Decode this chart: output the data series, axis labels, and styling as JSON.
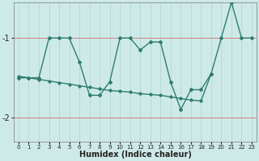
{
  "xlabel": "Humidex (Indice chaleur)",
  "x_values": [
    0,
    1,
    2,
    3,
    4,
    5,
    6,
    7,
    8,
    9,
    10,
    11,
    12,
    13,
    14,
    15,
    16,
    17,
    18,
    19,
    20,
    21,
    22,
    23
  ],
  "line1_y": [
    -1.5,
    -1.5,
    -1.5,
    -1.0,
    -1.0,
    -1.0,
    -1.3,
    -1.72,
    -1.72,
    -1.55,
    -1.0,
    -1.0,
    -1.15,
    -1.05,
    -1.05,
    -1.55,
    -1.9,
    -1.65,
    -1.65,
    -1.45,
    -1.0,
    -0.55,
    -1.0,
    -1.0
  ],
  "line2_x": [
    0,
    1,
    2,
    3,
    4,
    5,
    6,
    7,
    8,
    9,
    10,
    11,
    12,
    13,
    14,
    15,
    16,
    17,
    18,
    19
  ],
  "line2_y": [
    -1.48,
    -1.5,
    -1.52,
    -1.54,
    -1.56,
    -1.58,
    -1.6,
    -1.62,
    -1.64,
    -1.66,
    -1.67,
    -1.68,
    -1.7,
    -1.71,
    -1.72,
    -1.74,
    -1.76,
    -1.78,
    -1.79,
    -1.45
  ],
  "ylim": [
    -2.3,
    -0.55
  ],
  "xlim": [
    -0.5,
    23.5
  ],
  "yticks": [
    -2,
    -1
  ],
  "xticks": [
    0,
    1,
    2,
    3,
    4,
    5,
    6,
    7,
    8,
    9,
    10,
    11,
    12,
    13,
    14,
    15,
    16,
    17,
    18,
    19,
    20,
    21,
    22,
    23
  ],
  "line_color": "#2e7d6e",
  "bg_color": "#ceeae8",
  "grid_color": "#aed4d0",
  "hline_color": "#d08080",
  "font_color": "#222222"
}
